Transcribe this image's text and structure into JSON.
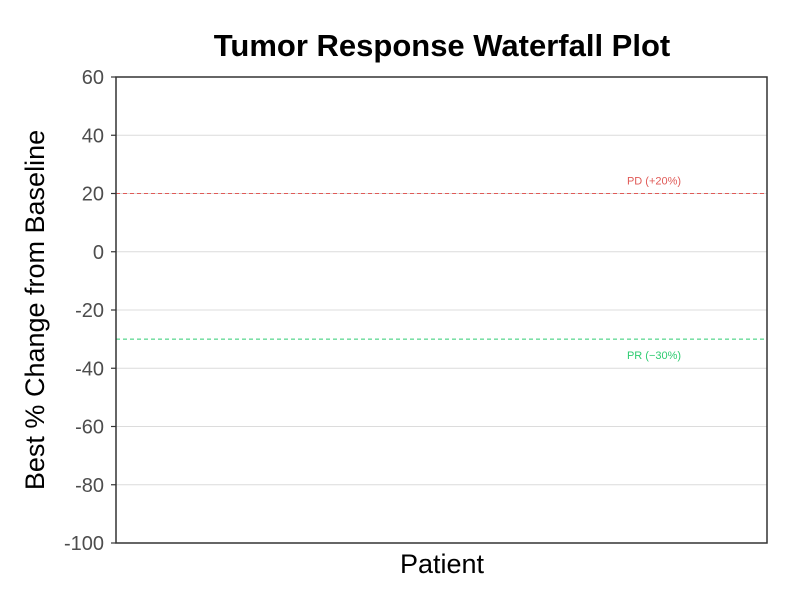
{
  "chart_data": {
    "type": "bar",
    "title": "Tumor Response Waterfall Plot",
    "xlabel": "Patient",
    "ylabel": "Best % Change from Baseline",
    "ylim": [
      -100,
      60
    ],
    "yticks": [
      60,
      40,
      20,
      0,
      -20,
      -40,
      -60,
      -80,
      -100
    ],
    "categories": [],
    "values": [],
    "grid": "horizontal major",
    "reference_lines": [
      {
        "label": "PD (+20%)",
        "y": 20,
        "color": "#e05a57",
        "style": "dashed"
      },
      {
        "label": "PR (−30%)",
        "y": -30,
        "color": "#2ecc71",
        "style": "dashed"
      }
    ]
  }
}
